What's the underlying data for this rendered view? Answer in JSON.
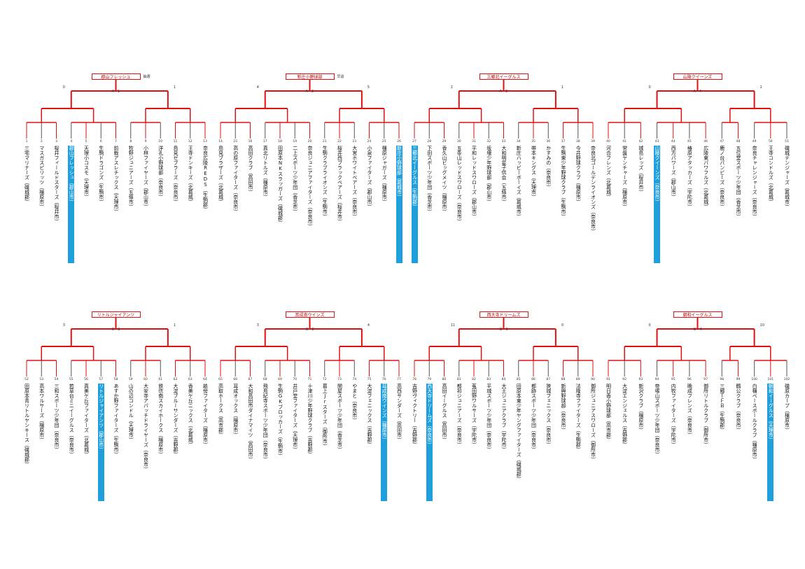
{
  "colors": {
    "winner_line": "#e01010",
    "normal_line": "#555555",
    "highlight_bg": "#1fa0dc"
  },
  "blocks": [
    {
      "id": "A",
      "champion": "郡山フレッシュ",
      "teams": [
        "三宅マリナーズ（磯城郡）",
        "マスガスピリッツ（橿原市）",
        "桜井フィールドスターズ（桜井市）",
        "郡山フレッシュ（郡山市）",
        "天理小コスモ（天理市）",
        "生駒ドラゴンズ（生駒市）",
        "前栽アスレチックス（天理市）"
      ],
      "highlight": [
        3
      ]
    },
    {
      "id": "A",
      "champion": "",
      "teams": [
        "牧野ジュニアーズ（五條市）",
        "小林ファイヤーズ（郡山市）",
        "洋孔小野球部（奈良市）",
        "鳥見ゼブラーズ（奈良市）",
        "王寺ドンキーズ（北葛城）",
        "奈良広陵REDS（生駒郡）"
      ],
      "highlight": []
    },
    {
      "id": "B",
      "champion": "新庄小野球部",
      "teams": [
        "鳥見ブラザーズ（北葛城）",
        "高の原ファイターズ（奈良市）",
        "高田クラブ（高田市）",
        "真北リトルズ（橿原市）",
        "田原本NKスラッガーズ（磯城郡）",
        "二上スポーツ少年団（香芝市）",
        "奈良ジュニアファイターズ（奈良市）"
      ],
      "highlight": []
    },
    {
      "id": "B",
      "champion": "",
      "teams": [
        "生駒クラブライオンズ（生駒市）",
        "桜井西ブラックベアーズ（桜井市）",
        "大宮ホワイトベアーズ（奈良市）",
        "小泉ファイターズ（郡山市）",
        "橿原ジャガーズ（橿原市）",
        "新庄小野球部（葛城市）"
      ],
      "highlight": [
        5
      ]
    },
    {
      "id": "C",
      "champion": "三郷北イーグルス",
      "teams": [
        "三郷北イーグルス（生駒郡）",
        "下田スポーツ少年団（香芝市）",
        "香久山ビッグメイツ（橿原市）",
        "五条山レッドスワローズ（奈良市）",
        "平和レッドスワローズ（郡山市）",
        "坂堰少年野球部（郡山市）",
        "大和明星子供会（五條市）"
      ],
      "highlight": [
        0
      ]
    },
    {
      "id": "C",
      "champion": "",
      "teams": [
        "新庄ハッピーボーイズ（葛城市）",
        "帯本キングス（天理市）",
        "かすみの（奈良市）",
        "生駒東少年野球クラブ（生駒市）",
        "今井野球クラブ（橿原市）",
        "奈良北ゴールデンライオンズ（奈良市）"
      ],
      "highlight": []
    },
    {
      "id": "D",
      "champion": "山陵クイーンズ",
      "teams": [
        "河合フレンズ（北葛城）",
        "常盤ヤンチャーズ（橿原市）",
        "城島レッズ（桜井市）",
        "山陵クイーンズ（奈良市）",
        "西方パワーズ（郡山市）",
        "椿原アタッカーズ（宇陀市）",
        "広陵東パワフルズ（北葛城）"
      ],
      "highlight": [
        3
      ]
    },
    {
      "id": "D",
      "champion": "",
      "teams": [
        "鹿ノ台パンビーズ（奈良市）",
        "五位堂スポーツ少年団（香芝市）",
        "奈良チャレンジャーズ（奈良市）",
        "王寺コンドルズ（北葛城）",
        "磯城デンジャーズ（葛城市）"
      ],
      "highlight": []
    },
    {
      "id": "E",
      "champion": "リトルジャイアンツ",
      "teams": [
        "田原本青リトルヤンキース（磯城郡）",
        "高本ワルサーズ（橿原市）",
        "三和スポーツ少年団（奈良市）",
        "若草台ミニイーグルス（奈良市）",
        "真美ケ丘ファイターズ（北葛城）",
        "リトルジャイアンツ（郡山市）",
        "あすか野ファイターズ（生駒市）"
      ],
      "highlight": [
        5
      ]
    },
    {
      "id": "E",
      "champion": "",
      "teams": [
        "山の辺コンドル（天理市）",
        "大安寺アパッチドライヤーズ（奈良市）",
        "鉄信南スカイホークス（橿原市）",
        "大淀ブルーサンダーズ（吉野郡）",
        "香美ケ丘ニックス（北葛城）",
        "畝傍ファイターズ（橿原市）"
      ],
      "highlight": []
    },
    {
      "id": "F",
      "champion": "耳成南ウインズ",
      "teams": [
        "高取ホークス（高市郡）",
        "耳成オックス（橿原市）",
        "大和高田市ダイナマイツ（高田市）",
        "飛鳥紀寺スポーツ少年団（奈良市）",
        "生駒GKブロッカーズ（生駒市）",
        "井戸堂ファイターズ（天理市）",
        "十津川少年野球クラブ（吉野郡）"
      ],
      "highlight": []
    },
    {
      "id": "F",
      "champion": "",
      "teams": [
        "葛上Jrスターズ（御所市）",
        "関屋スポーツ少年団（香芝市）",
        "やまと（奈良市）",
        "大淀フェニックス（吉野郡）",
        "耳成南ウインズ（橿原市）",
        "高西サンダーズ（高田市）"
      ],
      "highlight": [
        4
      ]
    },
    {
      "id": "G",
      "champion": "西大寺ドリームズ",
      "teams": [
        "吉野ヴィクトリー（吉野郡）",
        "西大寺ドリームズ（奈良市）",
        "高田イーグルス（高田市）",
        "都祁ジュニアーズ（奈良市）",
        "菟田野ワルサーズ（宇陀市）",
        "平城スポーツ少年団（奈良市）",
        "大王ジュニアクラブ（宇陀市）"
      ],
      "highlight": [
        1
      ]
    },
    {
      "id": "G",
      "champion": "",
      "teams": [
        "田原本東少年ヤングファイターズ（磯城郡）",
        "都跡スポーツ少年団（奈良市）",
        "狭城フェニックス（奈良市）",
        "新興野球部（奈良市）",
        "法隆寺ファイターズ（生駒郡）",
        "御所ジュニアスワローズ（御所市）"
      ],
      "highlight": []
    },
    {
      "id": "H",
      "champion": "朝和イーグルス",
      "teams": [
        "明日香小野球部（高市郡）",
        "大淀エンジェルス（吉野郡）",
        "新沢クラブ（橿原市）",
        "帝塚山スポーツ少年団（奈良市）",
        "内牧ファイターズ（宇陀市）",
        "晩成フレンズ（奈良市）",
        "御所リトルクラブ（御所市）"
      ],
      "highlight": []
    },
    {
      "id": "H",
      "champion": "",
      "teams": [
        "三郷ＴＦＢ（生駒郡）",
        "鶴公クラブ（奈良市）",
        "白橿ベースボールクラブ（橿原市）",
        "朝和イーグルス（天理市）",
        "磯原カープ（橿原市）"
      ],
      "highlight": [
        3
      ]
    }
  ],
  "top_labels": {
    "sections": [
      {
        "champion": "郡山フレッシュ",
        "final": "A－1",
        "left_score": "0",
        "right_score": "1",
        "tag": "抽選"
      },
      {
        "champion": "新庄小野球部",
        "final": "A－2",
        "left_score": "4",
        "right_score": "5",
        "tag": "早退"
      },
      {
        "champion": "三郷北イーグルス",
        "final": "A－3",
        "left_score": "2",
        "right_score": "1",
        "tag": ""
      },
      {
        "champion": "山陵クイーンズ",
        "final": "A－4",
        "left_score": "0",
        "right_score": "2",
        "tag": ""
      }
    ]
  },
  "bottom_labels": {
    "sections": [
      {
        "champion": "リトルジャイアンツ",
        "final": "G－1",
        "left_score": "3",
        "right_score": "1",
        "tag": ""
      },
      {
        "champion": "耳成南ウインズ",
        "final": "G－2",
        "left_score": "3",
        "right_score": "4",
        "tag": ""
      },
      {
        "champion": "西大寺ドリームズ",
        "final": "G－3",
        "left_score": "11",
        "right_score": "0",
        "tag": ""
      },
      {
        "champion": "朝和イーグルス",
        "final": "G－4",
        "left_score": "0",
        "right_score": "10",
        "tag": ""
      }
    ]
  }
}
